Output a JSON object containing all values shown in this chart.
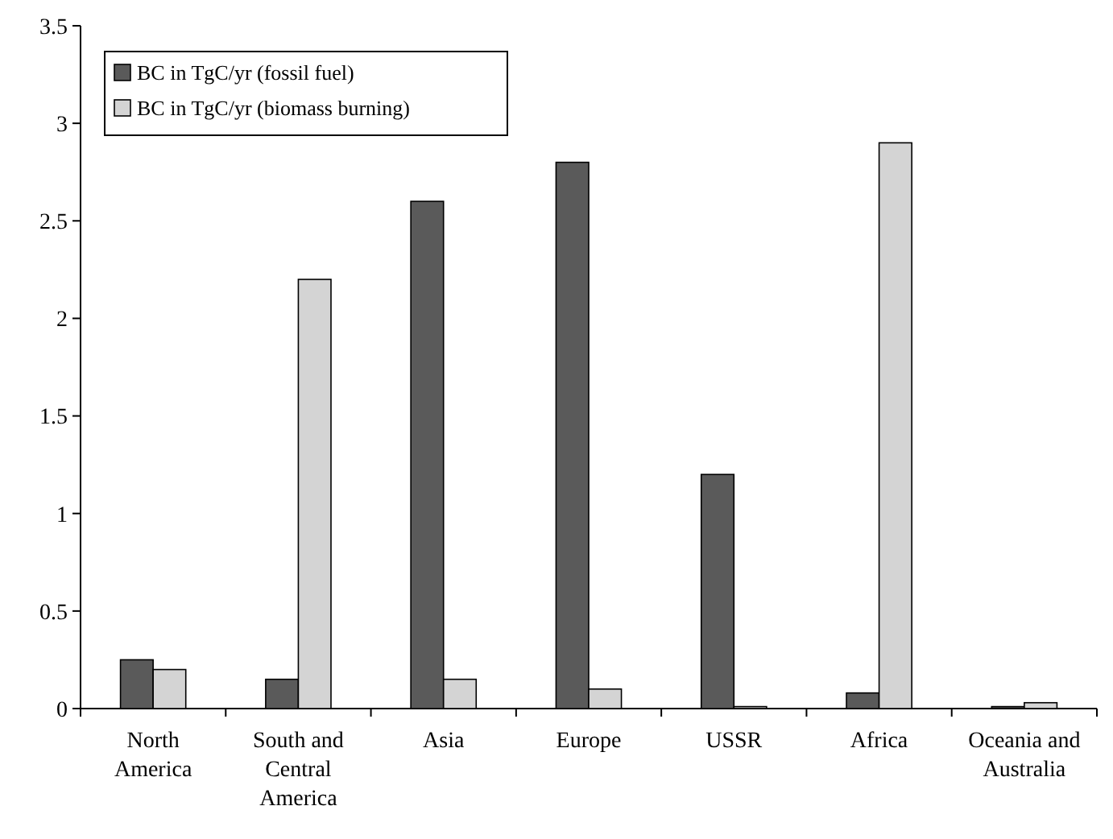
{
  "chart_data": {
    "type": "bar",
    "categories": [
      "North America",
      "South and Central America",
      "Asia",
      "Europe",
      "USSR",
      "Africa",
      "Oceania and Australia"
    ],
    "series": [
      {
        "name": "BC in TgC/yr (fossil fuel)",
        "color": "#5a5a5a",
        "values": [
          0.25,
          0.15,
          2.6,
          2.8,
          1.2,
          0.08,
          0.01
        ]
      },
      {
        "name": "BC in TgC/yr (biomass burning)",
        "color": "#d4d4d4",
        "values": [
          0.2,
          2.2,
          0.15,
          0.1,
          0.01,
          2.9,
          0.03
        ]
      }
    ],
    "ylim": [
      0,
      3.5
    ],
    "yticks": [
      0,
      0.5,
      1,
      1.5,
      2,
      2.5,
      3,
      3.5
    ],
    "legend": "top left"
  }
}
